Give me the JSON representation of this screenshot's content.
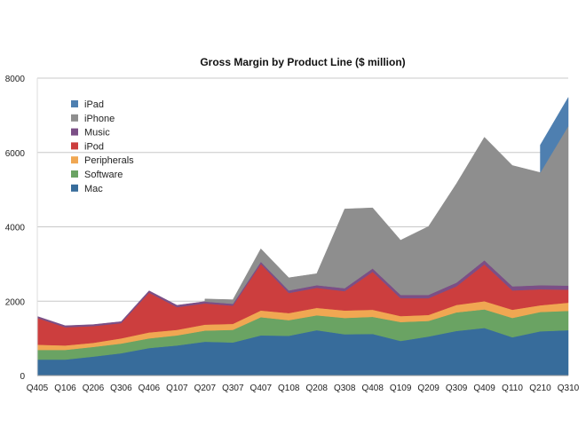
{
  "chart_data": {
    "type": "area",
    "stacked": true,
    "title": "Gross Margin by Product Line ($ million)",
    "xlabel": "",
    "ylabel": "",
    "ylim": [
      0,
      8000
    ],
    "yticks": [
      0,
      2000,
      4000,
      6000,
      8000
    ],
    "grid": true,
    "legend_placement": "top-left",
    "categories": [
      "Q405",
      "Q106",
      "Q206",
      "Q306",
      "Q406",
      "Q107",
      "Q207",
      "Q307",
      "Q407",
      "Q108",
      "Q208",
      "Q308",
      "Q408",
      "Q109",
      "Q209",
      "Q309",
      "Q409",
      "Q110",
      "Q210",
      "Q310"
    ],
    "series": [
      {
        "name": "Mac",
        "color": "#376c9b",
        "values": [
          430,
          430,
          510,
          600,
          740,
          810,
          910,
          890,
          1080,
          1070,
          1220,
          1110,
          1120,
          930,
          1050,
          1200,
          1280,
          1030,
          1190,
          1220
        ]
      },
      {
        "name": "Software",
        "color": "#6aa363",
        "values": [
          260,
          260,
          260,
          260,
          260,
          270,
          300,
          340,
          490,
          420,
          400,
          440,
          460,
          510,
          420,
          500,
          500,
          520,
          520,
          520
        ]
      },
      {
        "name": "Peripherals",
        "color": "#f0a752",
        "values": [
          140,
          120,
          110,
          140,
          160,
          150,
          160,
          160,
          180,
          190,
          200,
          200,
          190,
          160,
          160,
          200,
          220,
          220,
          180,
          220
        ]
      },
      {
        "name": "iPod",
        "color": "#cc3e3e",
        "values": [
          720,
          490,
          450,
          410,
          1070,
          610,
          570,
          490,
          1250,
          540,
          540,
          520,
          1020,
          480,
          450,
          500,
          990,
          520,
          430,
          350
        ]
      },
      {
        "name": "Music",
        "color": "#7b4f86",
        "values": [
          40,
          40,
          40,
          40,
          50,
          50,
          50,
          50,
          60,
          70,
          70,
          80,
          90,
          90,
          90,
          100,
          110,
          110,
          110,
          110
        ]
      },
      {
        "name": "iPhone",
        "color": "#8e8e8e",
        "values": [
          null,
          null,
          null,
          null,
          null,
          null,
          70,
          110,
          350,
          340,
          310,
          2130,
          1630,
          1470,
          1840,
          2660,
          3310,
          3250,
          3030,
          4290
        ]
      },
      {
        "name": "iPad",
        "color": "#4e7fb0",
        "values": [
          null,
          null,
          null,
          null,
          null,
          null,
          null,
          null,
          null,
          null,
          null,
          null,
          null,
          null,
          null,
          null,
          null,
          null,
          740,
          770
        ]
      }
    ],
    "legend_order": [
      "iPad",
      "iPhone",
      "Music",
      "iPod",
      "Peripherals",
      "Software",
      "Mac"
    ]
  }
}
